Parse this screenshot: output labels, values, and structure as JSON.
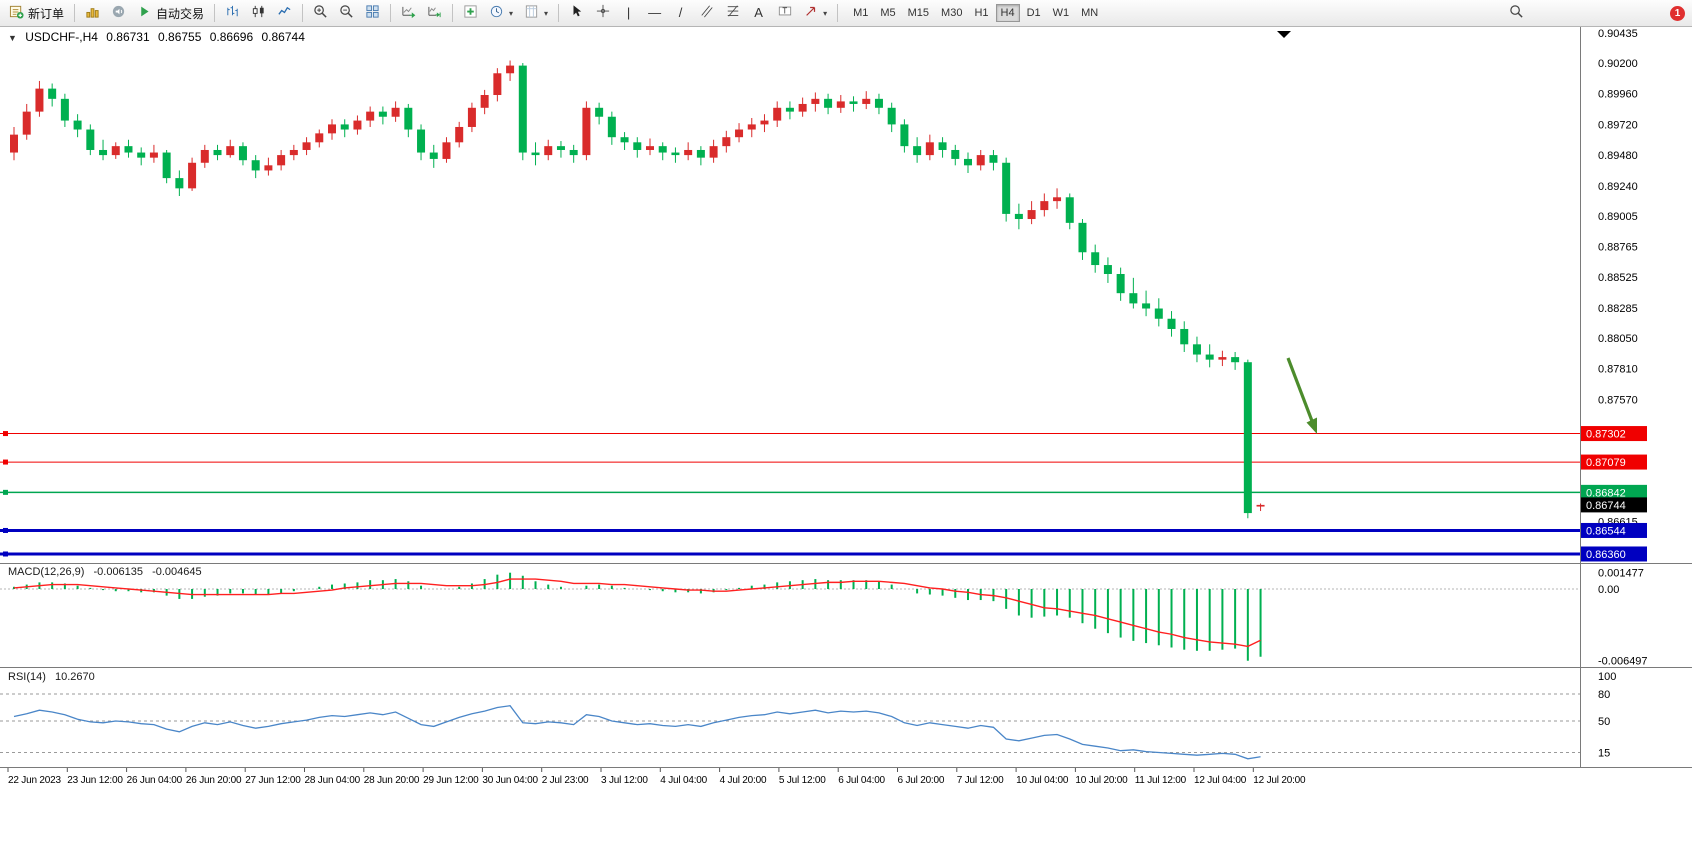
{
  "toolbar": {
    "new_order_label": "新订单",
    "autotrading_label": "自动交易",
    "timeframes": [
      "M1",
      "M5",
      "M15",
      "M30",
      "H1",
      "H4",
      "D1",
      "W1",
      "MN"
    ],
    "active_timeframe": "H4",
    "notification_count": "1"
  },
  "chart": {
    "symbol_period": "USDCHF-,H4",
    "open": "0.86731",
    "high": "0.86755",
    "low": "0.86696",
    "close": "0.86744",
    "price_axis_labels": [
      "0.90435",
      "0.90200",
      "0.89960",
      "0.89720",
      "0.89480",
      "0.89240",
      "0.89005",
      "0.88765",
      "0.88525",
      "0.88285",
      "0.88050",
      "0.87810",
      "0.87570",
      "0.86615"
    ],
    "levels": [
      {
        "price": 0.87302,
        "label": "0.87302",
        "color": "#f00000",
        "thickness": 1
      },
      {
        "price": 0.87079,
        "label": "0.87079",
        "color": "#f00000",
        "thickness": 1
      },
      {
        "price": 0.86842,
        "label": "0.86842",
        "color": "#00a651",
        "thickness": 1.6
      },
      {
        "price": 0.86544,
        "label": "0.86544",
        "color": "#0000c0",
        "thickness": 3
      },
      {
        "price": 0.8636,
        "label": "0.86360",
        "color": "#0000c0",
        "thickness": 3
      }
    ],
    "current_price": 0.86744,
    "current_price_label": "0.86744"
  },
  "macd": {
    "label": "MACD(12,26,9)",
    "value_main": "-0.006135",
    "value_signal": "-0.004645",
    "axis_labels": [
      {
        "v": 0.001477,
        "text": "0.001477"
      },
      {
        "v": 0,
        "text": "0.00"
      },
      {
        "v": -0.006497,
        "text": "-0.006497"
      }
    ]
  },
  "rsi": {
    "label": "RSI(14)",
    "value": "10.2670",
    "levels": [
      80,
      50,
      15
    ],
    "axis_labels": [
      {
        "v": 100,
        "text": "100"
      },
      {
        "v": 80,
        "text": "80"
      },
      {
        "v": 50,
        "text": "50"
      },
      {
        "v": 15,
        "text": "15"
      }
    ]
  },
  "colors": {
    "up": "#d92b2b",
    "down": "#00b050",
    "macd_hist": "#00b050",
    "macd_signal": "#ff2020",
    "rsi_line": "#4a86c8",
    "arrow": "#4c8c2c",
    "tag_current_bg": "#000000",
    "level_red": "#f00000",
    "level_green": "#00a651",
    "level_blue": "#0000c0"
  },
  "annotations": {
    "arrow": {
      "color": "#4c8c2c",
      "direction": "down-right"
    }
  },
  "chart_data": {
    "type": "candlestick",
    "symbol": "USDCHF",
    "period": "H4",
    "ylim": [
      0.8636,
      0.90435
    ],
    "up_means": "red (CN convention)",
    "time_labels": [
      "22 Jun 2023",
      "23 Jun 12:00",
      "26 Jun 04:00",
      "26 Jun 20:00",
      "27 Jun 12:00",
      "28 Jun 04:00",
      "28 Jun 20:00",
      "29 Jun 12:00",
      "30 Jun 04:00",
      "2 Jul 23:00",
      "3 Jul 12:00",
      "4 Jul 04:00",
      "4 Jul 20:00",
      "5 Jul 12:00",
      "6 Jul 04:00",
      "6 Jul 20:00",
      "7 Jul 12:00",
      "10 Jul 04:00",
      "10 Jul 20:00",
      "11 Jul 12:00",
      "12 Jul 04:00",
      "12 Jul 20:00"
    ],
    "candles": [
      [
        0.895,
        0.897,
        0.8944,
        0.8964
      ],
      [
        0.8964,
        0.8988,
        0.896,
        0.8982
      ],
      [
        0.8982,
        0.9006,
        0.8978,
        0.9
      ],
      [
        0.9,
        0.9004,
        0.8986,
        0.8992
      ],
      [
        0.8992,
        0.8996,
        0.897,
        0.8975
      ],
      [
        0.8975,
        0.898,
        0.8962,
        0.8968
      ],
      [
        0.8968,
        0.8972,
        0.8948,
        0.8952
      ],
      [
        0.8952,
        0.896,
        0.8944,
        0.8948
      ],
      [
        0.8948,
        0.8958,
        0.8945,
        0.8955
      ],
      [
        0.8955,
        0.896,
        0.8946,
        0.895
      ],
      [
        0.895,
        0.8954,
        0.894,
        0.8946
      ],
      [
        0.8946,
        0.8956,
        0.8942,
        0.895
      ],
      [
        0.895,
        0.8952,
        0.8926,
        0.893
      ],
      [
        0.893,
        0.8936,
        0.8916,
        0.8922
      ],
      [
        0.8922,
        0.8946,
        0.892,
        0.8942
      ],
      [
        0.8942,
        0.8956,
        0.8938,
        0.8952
      ],
      [
        0.8952,
        0.8956,
        0.8944,
        0.8948
      ],
      [
        0.8948,
        0.896,
        0.8946,
        0.8955
      ],
      [
        0.8955,
        0.8958,
        0.894,
        0.8944
      ],
      [
        0.8944,
        0.8948,
        0.893,
        0.8936
      ],
      [
        0.8936,
        0.8946,
        0.8932,
        0.894
      ],
      [
        0.894,
        0.8952,
        0.8936,
        0.8948
      ],
      [
        0.8948,
        0.8956,
        0.8944,
        0.8952
      ],
      [
        0.8952,
        0.8962,
        0.8948,
        0.8958
      ],
      [
        0.8958,
        0.8968,
        0.8954,
        0.8965
      ],
      [
        0.8965,
        0.8976,
        0.896,
        0.8972
      ],
      [
        0.8972,
        0.8976,
        0.8962,
        0.8968
      ],
      [
        0.8968,
        0.8979,
        0.8964,
        0.8975
      ],
      [
        0.8975,
        0.8986,
        0.897,
        0.8982
      ],
      [
        0.8982,
        0.8986,
        0.8972,
        0.8978
      ],
      [
        0.8978,
        0.899,
        0.8974,
        0.8985
      ],
      [
        0.8985,
        0.8988,
        0.8962,
        0.8968
      ],
      [
        0.8968,
        0.8972,
        0.8944,
        0.895
      ],
      [
        0.895,
        0.8956,
        0.8938,
        0.8945
      ],
      [
        0.8945,
        0.8962,
        0.8942,
        0.8958
      ],
      [
        0.8958,
        0.8974,
        0.8954,
        0.897
      ],
      [
        0.897,
        0.8989,
        0.8966,
        0.8985
      ],
      [
        0.8985,
        0.8999,
        0.898,
        0.8995
      ],
      [
        0.8995,
        0.9016,
        0.899,
        0.9012
      ],
      [
        0.9012,
        0.9022,
        0.9006,
        0.9018
      ],
      [
        0.9018,
        0.902,
        0.8944,
        0.895
      ],
      [
        0.895,
        0.8958,
        0.894,
        0.8948
      ],
      [
        0.8948,
        0.896,
        0.8944,
        0.8955
      ],
      [
        0.8955,
        0.8959,
        0.8946,
        0.8952
      ],
      [
        0.8952,
        0.8956,
        0.8942,
        0.8948
      ],
      [
        0.8948,
        0.899,
        0.8944,
        0.8985
      ],
      [
        0.8985,
        0.8989,
        0.8972,
        0.8978
      ],
      [
        0.8978,
        0.8982,
        0.8956,
        0.8962
      ],
      [
        0.8962,
        0.8966,
        0.8952,
        0.8958
      ],
      [
        0.8958,
        0.8962,
        0.8946,
        0.8952
      ],
      [
        0.8952,
        0.8961,
        0.8948,
        0.8955
      ],
      [
        0.8955,
        0.8958,
        0.8944,
        0.895
      ],
      [
        0.895,
        0.8954,
        0.8942,
        0.8948
      ],
      [
        0.8948,
        0.8958,
        0.8944,
        0.8952
      ],
      [
        0.8952,
        0.8955,
        0.894,
        0.8946
      ],
      [
        0.8946,
        0.896,
        0.8942,
        0.8955
      ],
      [
        0.8955,
        0.8967,
        0.895,
        0.8962
      ],
      [
        0.8962,
        0.8973,
        0.8958,
        0.8968
      ],
      [
        0.8968,
        0.8977,
        0.8962,
        0.8972
      ],
      [
        0.8972,
        0.898,
        0.8966,
        0.8975
      ],
      [
        0.8975,
        0.899,
        0.897,
        0.8985
      ],
      [
        0.8985,
        0.899,
        0.8976,
        0.8982
      ],
      [
        0.8982,
        0.8993,
        0.8978,
        0.8988
      ],
      [
        0.8988,
        0.8997,
        0.8982,
        0.8992
      ],
      [
        0.8992,
        0.8996,
        0.898,
        0.8985
      ],
      [
        0.8985,
        0.8995,
        0.8981,
        0.899
      ],
      [
        0.899,
        0.8994,
        0.8982,
        0.8988
      ],
      [
        0.8988,
        0.8998,
        0.8984,
        0.8992
      ],
      [
        0.8992,
        0.8996,
        0.898,
        0.8985
      ],
      [
        0.8985,
        0.8989,
        0.8966,
        0.8972
      ],
      [
        0.8972,
        0.8976,
        0.895,
        0.8955
      ],
      [
        0.8955,
        0.8962,
        0.8942,
        0.8948
      ],
      [
        0.8948,
        0.8964,
        0.8944,
        0.8958
      ],
      [
        0.8958,
        0.8962,
        0.8946,
        0.8952
      ],
      [
        0.8952,
        0.8956,
        0.894,
        0.8945
      ],
      [
        0.8945,
        0.895,
        0.8934,
        0.894
      ],
      [
        0.894,
        0.8952,
        0.8936,
        0.8948
      ],
      [
        0.8948,
        0.8952,
        0.8936,
        0.8942
      ],
      [
        0.8942,
        0.8946,
        0.8896,
        0.8902
      ],
      [
        0.8902,
        0.891,
        0.889,
        0.8898
      ],
      [
        0.8898,
        0.8912,
        0.8894,
        0.8905
      ],
      [
        0.8905,
        0.8918,
        0.89,
        0.8912
      ],
      [
        0.8912,
        0.8922,
        0.8906,
        0.8915
      ],
      [
        0.8915,
        0.8918,
        0.889,
        0.8895
      ],
      [
        0.8895,
        0.8898,
        0.8866,
        0.8872
      ],
      [
        0.8872,
        0.8878,
        0.8856,
        0.8862
      ],
      [
        0.8862,
        0.8868,
        0.8848,
        0.8855
      ],
      [
        0.8855,
        0.886,
        0.8834,
        0.884
      ],
      [
        0.884,
        0.8852,
        0.8828,
        0.8832
      ],
      [
        0.8832,
        0.8842,
        0.8822,
        0.8828
      ],
      [
        0.8828,
        0.8836,
        0.8814,
        0.882
      ],
      [
        0.882,
        0.8826,
        0.8806,
        0.8812
      ],
      [
        0.8812,
        0.8818,
        0.8794,
        0.88
      ],
      [
        0.88,
        0.8806,
        0.8786,
        0.8792
      ],
      [
        0.8792,
        0.88,
        0.8782,
        0.8788
      ],
      [
        0.8788,
        0.8795,
        0.8783,
        0.879
      ],
      [
        0.879,
        0.8794,
        0.878,
        0.8786
      ],
      [
        0.8786,
        0.8788,
        0.8664,
        0.8668
      ],
      [
        0.86731,
        0.86755,
        0.86696,
        0.86744
      ]
    ],
    "macd_hist": [
      0.0002,
      0.0004,
      0.0006,
      0.0006,
      0.0005,
      0.0003,
      0.0001,
      -0.0001,
      -0.0002,
      -0.0002,
      -0.0003,
      -0.0003,
      -0.0006,
      -0.0009,
      -0.0009,
      -0.0007,
      -0.0006,
      -0.0004,
      -0.0004,
      -0.0005,
      -0.0005,
      -0.0004,
      -0.0002,
      0.0,
      0.0002,
      0.0004,
      0.0005,
      0.0006,
      0.0008,
      0.0008,
      0.0009,
      0.0007,
      0.0003,
      0.0,
      0.0,
      0.0002,
      0.0005,
      0.0009,
      0.0013,
      0.001477,
      0.0012,
      0.0007,
      0.0004,
      0.0002,
      0.0,
      0.0003,
      0.0004,
      0.0003,
      0.0001,
      0.0,
      -0.0001,
      -0.0002,
      -0.0003,
      -0.0003,
      -0.0004,
      -0.0003,
      -0.0001,
      0.0001,
      0.0003,
      0.0004,
      0.0006,
      0.0007,
      0.0008,
      0.0009,
      0.0008,
      0.0008,
      0.0008,
      0.0008,
      0.0007,
      0.0004,
      0.0,
      -0.0004,
      -0.0005,
      -0.0006,
      -0.0008,
      -0.001,
      -0.001,
      -0.0011,
      -0.0018,
      -0.0024,
      -0.0026,
      -0.0025,
      -0.0024,
      -0.0026,
      -0.0031,
      -0.0036,
      -0.004,
      -0.0044,
      -0.0047,
      -0.0049,
      -0.0051,
      -0.0053,
      -0.0055,
      -0.0056,
      -0.0056,
      -0.0055,
      -0.0054,
      -0.006497,
      -0.006135
    ],
    "macd_signal": [
      0.0001,
      0.0002,
      0.0003,
      0.0004,
      0.0004,
      0.0004,
      0.0003,
      0.0002,
      0.0001,
      0.0,
      -0.0001,
      -0.0002,
      -0.0003,
      -0.0004,
      -0.0005,
      -0.0005,
      -0.0005,
      -0.0005,
      -0.0005,
      -0.0005,
      -0.0005,
      -0.0004,
      -0.0004,
      -0.0003,
      -0.0002,
      -0.0001,
      0.0001,
      0.0002,
      0.0003,
      0.0004,
      0.0005,
      0.0005,
      0.0005,
      0.0004,
      0.0003,
      0.0003,
      0.0003,
      0.0004,
      0.0006,
      0.0009,
      0.0009,
      0.0009,
      0.0008,
      0.0007,
      0.0005,
      0.0005,
      0.0005,
      0.0004,
      0.0004,
      0.0003,
      0.0002,
      0.0001,
      0.0,
      -0.0001,
      -0.0001,
      -0.0002,
      -0.0002,
      -0.0001,
      0.0,
      0.0001,
      0.0002,
      0.0003,
      0.0004,
      0.0005,
      0.0006,
      0.0006,
      0.0007,
      0.0007,
      0.0007,
      0.0006,
      0.0005,
      0.0003,
      0.0001,
      0.0,
      -0.0002,
      -0.0003,
      -0.0005,
      -0.0006,
      -0.0008,
      -0.0011,
      -0.0014,
      -0.0017,
      -0.0018,
      -0.002,
      -0.0022,
      -0.0024,
      -0.0027,
      -0.003,
      -0.0033,
      -0.0036,
      -0.0039,
      -0.0041,
      -0.0044,
      -0.0046,
      -0.0048,
      -0.0049,
      -0.005,
      -0.0052,
      -0.004645
    ],
    "rsi_values": [
      55,
      58,
      62,
      60,
      57,
      52,
      49,
      48,
      50,
      49,
      47,
      46,
      41,
      38,
      44,
      48,
      46,
      49,
      45,
      42,
      44,
      47,
      49,
      51,
      54,
      56,
      55,
      57,
      59,
      57,
      60,
      53,
      46,
      44,
      49,
      54,
      58,
      61,
      65,
      67,
      48,
      47,
      49,
      48,
      46,
      57,
      55,
      50,
      48,
      46,
      47,
      45,
      44,
      46,
      44,
      48,
      51,
      54,
      56,
      57,
      60,
      58,
      60,
      62,
      59,
      61,
      60,
      61,
      59,
      55,
      48,
      45,
      48,
      46,
      44,
      42,
      45,
      43,
      30,
      28,
      31,
      34,
      35,
      30,
      24,
      22,
      20,
      17,
      18,
      16,
      15,
      14,
      13,
      12,
      13,
      14,
      13,
      8,
      10.267
    ]
  }
}
